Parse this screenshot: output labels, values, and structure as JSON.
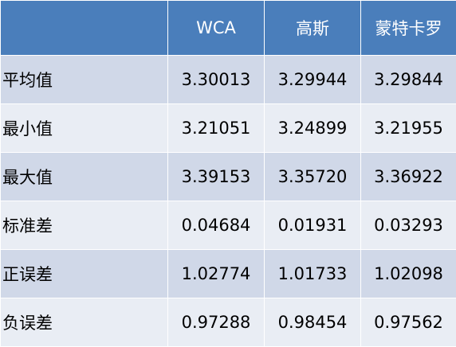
{
  "table": {
    "header": [
      "",
      "WCA",
      "高斯",
      "蒙特卡罗"
    ],
    "rows": [
      {
        "label": "平均值",
        "values": [
          "3.30013",
          "3.29944",
          "3.29844"
        ]
      },
      {
        "label": "最小值",
        "values": [
          "3.21051",
          "3.24899",
          "3.21955"
        ]
      },
      {
        "label": "最大值",
        "values": [
          "3.39153",
          "3.35720",
          "3.36922"
        ]
      },
      {
        "label": "标准差",
        "values": [
          "0.04684",
          "0.01931",
          "0.03293"
        ]
      },
      {
        "label": "正误差",
        "values": [
          "1.02774",
          "1.01733",
          "1.02098"
        ]
      },
      {
        "label": "负误差",
        "values": [
          "0.97288",
          "0.98454",
          "0.97562"
        ]
      }
    ]
  },
  "colors": {
    "header_bg": "#4a7ebb",
    "row_odd_bg": "#d0d8e8",
    "row_even_bg": "#e9edf4",
    "header_text": "#ffffff"
  }
}
